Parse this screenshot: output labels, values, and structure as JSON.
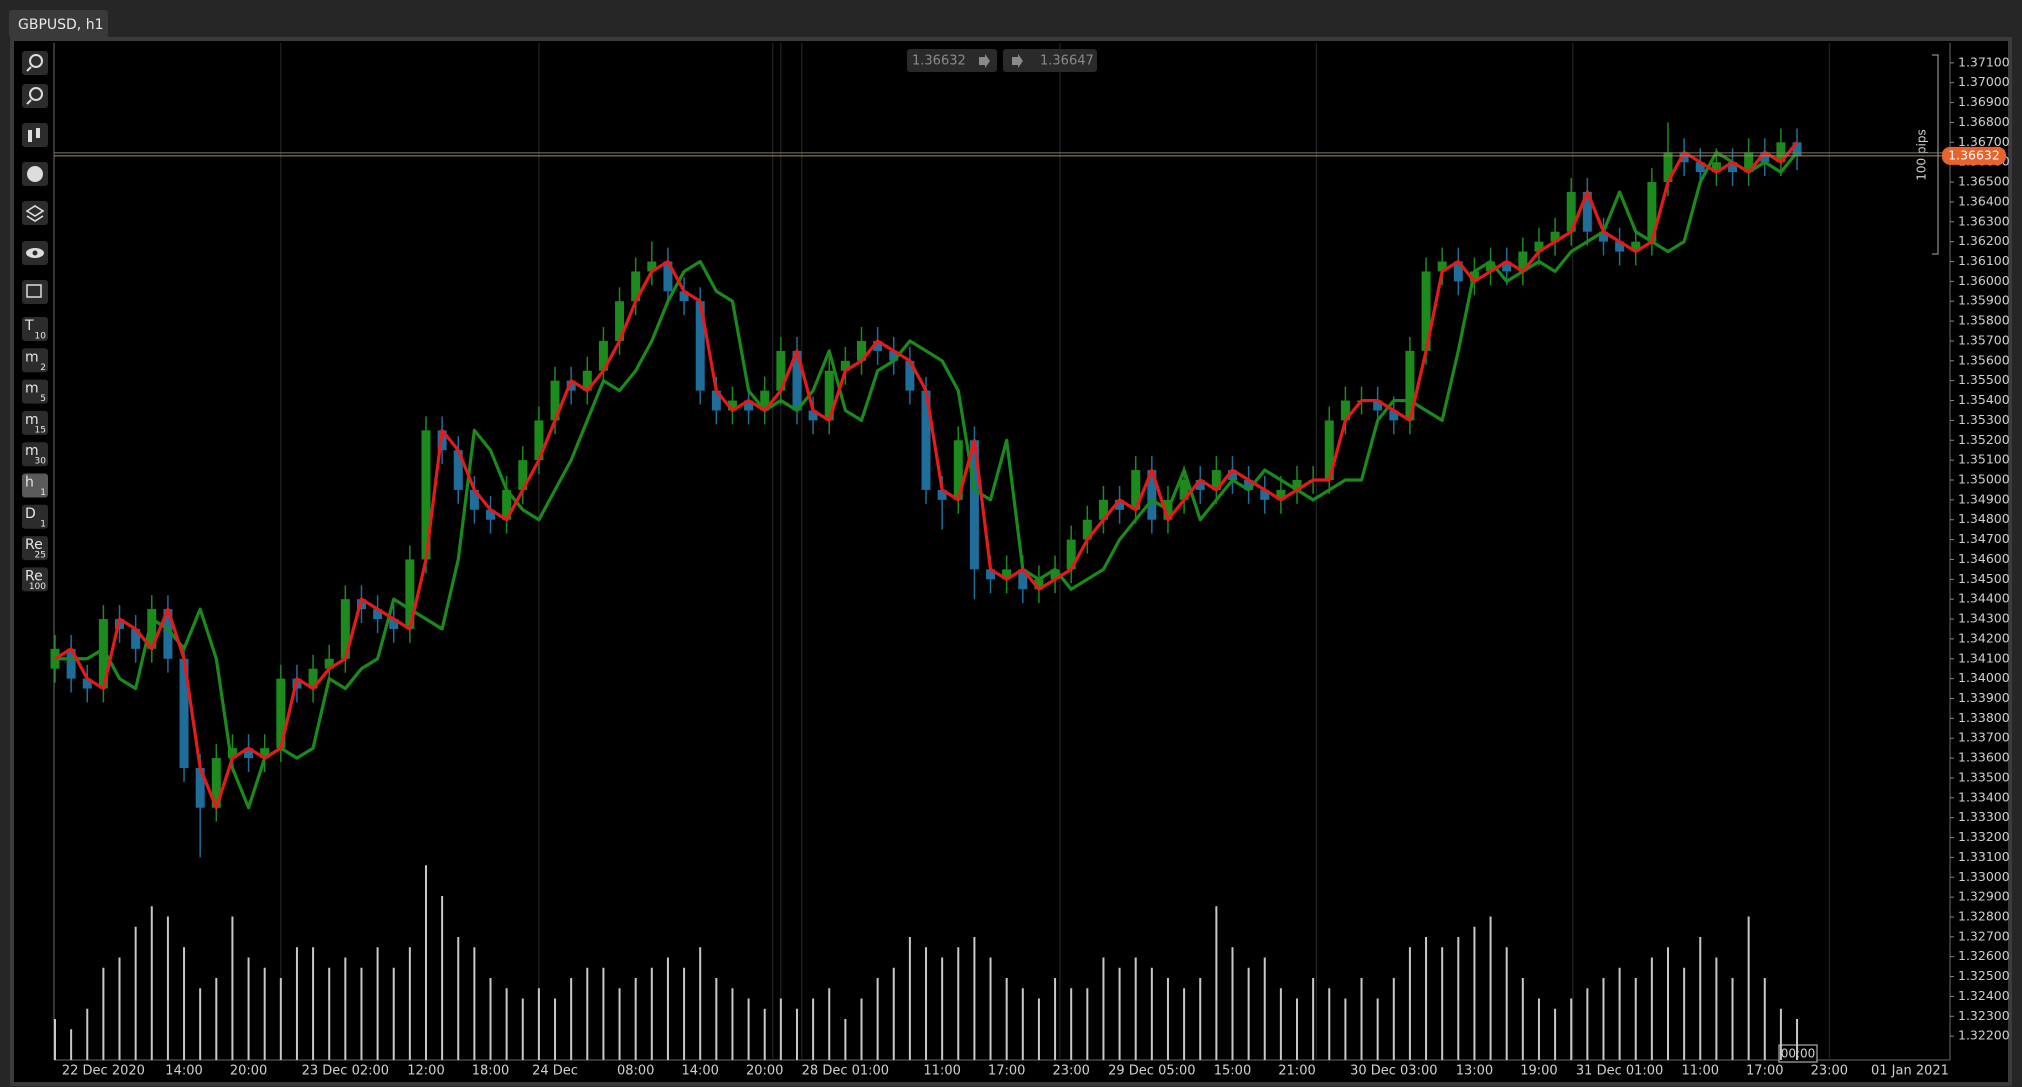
{
  "ui": {
    "tab": "GBPUSD, h1",
    "pips": "100 pips",
    "time_marker": "00:00",
    "toolbar": [
      {
        "label": "T",
        "sub": "10"
      },
      {
        "label": "m",
        "sub": "2"
      },
      {
        "label": "m",
        "sub": "5"
      },
      {
        "label": "m",
        "sub": "15"
      },
      {
        "label": "m",
        "sub": "30"
      },
      {
        "label": "h",
        "sub": "1"
      },
      {
        "label": "D",
        "sub": "1"
      },
      {
        "label": "Re",
        "sub": "25"
      },
      {
        "label": "Re",
        "sub": "100"
      }
    ],
    "active_button": 5
  },
  "chart_data": {
    "type": "candlestick",
    "up_color": "#1d8a1d",
    "down_color": "#1f6e9a",
    "volume_color": "#c8c8c8",
    "bid": 1.36632,
    "ask": 1.36647,
    "bid_color": "#e8642c",
    "categories": [
      null,
      null,
      null,
      "22 Dec 2020",
      null,
      null,
      null,
      null,
      "14:00",
      null,
      null,
      null,
      "20:00",
      null,
      null,
      null,
      null,
      null,
      "23 Dec 02:00",
      null,
      null,
      null,
      null,
      "12:00",
      null,
      null,
      null,
      "18:00",
      null,
      null,
      null,
      "24 Dec",
      null,
      null,
      null,
      null,
      "08:00",
      null,
      null,
      null,
      "14:00",
      null,
      null,
      null,
      "20:00",
      null,
      null,
      null,
      null,
      "28 Dec 01:00",
      null,
      null,
      null,
      null,
      null,
      "11:00",
      null,
      null,
      null,
      "17:00",
      null,
      null,
      null,
      "23:00",
      null,
      null,
      null,
      null,
      "29 Dec 05:00",
      null,
      null,
      null,
      null,
      "15:00",
      null,
      null,
      null,
      "21:00",
      null,
      null,
      null,
      null,
      null,
      "30 Dec 03:00",
      null,
      null,
      null,
      null,
      "13:00",
      null,
      null,
      null,
      "19:00",
      null,
      null,
      null,
      null,
      "31 Dec 01:00",
      null,
      null,
      null,
      null,
      "11:00",
      null,
      null,
      null,
      "17:00",
      null,
      null,
      null,
      "23:00",
      null,
      null,
      null,
      null,
      "01 Jan 2021",
      null,
      null
    ],
    "open": [
      1.3405,
      1.3415,
      1.34,
      1.3395,
      1.343,
      1.3425,
      1.3415,
      1.3435,
      1.341,
      1.3355,
      1.3335,
      1.336,
      1.3365,
      1.336,
      1.3365,
      1.34,
      1.3395,
      1.3405,
      1.341,
      1.344,
      1.3435,
      1.343,
      1.3425,
      1.346,
      1.3525,
      1.3515,
      1.3495,
      1.3485,
      1.348,
      1.3495,
      1.351,
      1.353,
      1.355,
      1.3545,
      1.3555,
      1.357,
      1.359,
      1.3605,
      1.361,
      1.3595,
      1.359,
      1.3545,
      1.3535,
      1.354,
      1.3535,
      1.3545,
      1.3565,
      1.3535,
      1.353,
      1.3555,
      1.356,
      1.357,
      1.3565,
      1.356,
      1.3545,
      1.3495,
      1.349,
      1.352,
      1.3455,
      1.345,
      1.3455,
      1.3445,
      1.345,
      1.3455,
      1.347,
      1.348,
      1.349,
      1.3485,
      1.3505,
      1.348,
      1.349,
      1.35,
      1.3495,
      1.3505,
      1.35,
      1.3495,
      1.349,
      1.3495,
      1.35,
      1.35,
      1.353,
      1.354,
      1.354,
      1.3535,
      1.353,
      1.3565,
      1.3605,
      1.361,
      1.36,
      1.3605,
      1.361,
      1.3605,
      1.3615,
      1.362,
      1.3625,
      1.3645,
      1.3625,
      1.362,
      1.3615,
      1.362,
      1.365,
      1.3665,
      1.366,
      1.3655,
      1.366,
      1.3655,
      1.3665,
      1.366,
      1.367,
      null,
      null,
      null,
      null,
      null,
      null,
      null,
      null,
      null
    ],
    "high": [
      1.3422,
      1.3422,
      1.3407,
      1.3437,
      1.3437,
      1.3432,
      1.3442,
      1.3442,
      1.3417,
      1.3362,
      1.3367,
      1.3372,
      1.3372,
      1.3372,
      1.3407,
      1.3407,
      1.3412,
      1.3417,
      1.3447,
      1.3447,
      1.3442,
      1.3437,
      1.3467,
      1.3532,
      1.3532,
      1.3522,
      1.3502,
      1.3492,
      1.3502,
      1.3517,
      1.3537,
      1.3557,
      1.3557,
      1.3562,
      1.3577,
      1.3597,
      1.3612,
      1.362,
      1.3617,
      1.3602,
      1.3597,
      1.3552,
      1.3547,
      1.3547,
      1.3552,
      1.3572,
      1.3572,
      1.3542,
      1.3562,
      1.3567,
      1.3577,
      1.3577,
      1.3572,
      1.3567,
      1.3552,
      1.3502,
      1.3527,
      1.3527,
      1.3462,
      1.3462,
      1.3462,
      1.3457,
      1.3462,
      1.3477,
      1.3487,
      1.3497,
      1.3497,
      1.3512,
      1.3512,
      1.3497,
      1.3507,
      1.3507,
      1.3512,
      1.3512,
      1.3507,
      1.3502,
      1.3502,
      1.3507,
      1.3507,
      1.3537,
      1.3547,
      1.3547,
      1.3547,
      1.3542,
      1.3572,
      1.3612,
      1.3617,
      1.3617,
      1.3612,
      1.3617,
      1.3617,
      1.3622,
      1.3627,
      1.3632,
      1.3652,
      1.3652,
      1.3632,
      1.3627,
      1.3627,
      1.3657,
      1.368,
      1.3672,
      1.3667,
      1.3667,
      1.3667,
      1.3672,
      1.3672,
      1.3677,
      1.3677,
      null,
      null,
      null,
      null,
      null,
      null,
      null,
      null,
      null
    ],
    "low": [
      1.3398,
      1.3393,
      1.3388,
      1.3388,
      1.3418,
      1.3408,
      1.3408,
      1.3403,
      1.3348,
      1.331,
      1.3328,
      1.3353,
      1.3353,
      1.3353,
      1.3358,
      1.3388,
      1.3388,
      1.3398,
      1.3403,
      1.3428,
      1.3423,
      1.3418,
      1.3418,
      1.3453,
      1.3508,
      1.3488,
      1.3478,
      1.3473,
      1.3473,
      1.3488,
      1.3503,
      1.3523,
      1.3538,
      1.3538,
      1.3548,
      1.3563,
      1.3583,
      1.3598,
      1.3588,
      1.3583,
      1.3538,
      1.3528,
      1.3528,
      1.3528,
      1.3528,
      1.3538,
      1.3528,
      1.3523,
      1.3523,
      1.3548,
      1.3553,
      1.3558,
      1.3553,
      1.3538,
      1.3488,
      1.3475,
      1.3483,
      1.344,
      1.3443,
      1.3443,
      1.3438,
      1.3438,
      1.3443,
      1.3448,
      1.3463,
      1.3473,
      1.3478,
      1.3478,
      1.3473,
      1.3473,
      1.3483,
      1.3488,
      1.3488,
      1.3493,
      1.3488,
      1.3483,
      1.3483,
      1.3488,
      1.3493,
      1.3493,
      1.3523,
      1.3533,
      1.3528,
      1.3523,
      1.3523,
      1.3558,
      1.3598,
      1.3593,
      1.3593,
      1.3598,
      1.3598,
      1.3598,
      1.3608,
      1.3613,
      1.3618,
      1.3618,
      1.3613,
      1.3608,
      1.3608,
      1.3613,
      1.3643,
      1.3653,
      1.3648,
      1.3648,
      1.3648,
      1.3648,
      1.3653,
      1.3653,
      1.3656,
      null,
      null,
      null,
      null,
      null,
      null,
      null,
      null,
      null
    ],
    "close": [
      1.3415,
      1.34,
      1.3395,
      1.343,
      1.3425,
      1.3415,
      1.3435,
      1.341,
      1.3355,
      1.3335,
      1.336,
      1.3365,
      1.336,
      1.3365,
      1.34,
      1.3395,
      1.3405,
      1.341,
      1.344,
      1.3435,
      1.343,
      1.3425,
      1.346,
      1.3525,
      1.3515,
      1.3495,
      1.3485,
      1.348,
      1.3495,
      1.351,
      1.353,
      1.355,
      1.3545,
      1.3555,
      1.357,
      1.359,
      1.3605,
      1.361,
      1.3595,
      1.359,
      1.3545,
      1.3535,
      1.354,
      1.3535,
      1.3545,
      1.3565,
      1.3535,
      1.353,
      1.3555,
      1.356,
      1.357,
      1.3565,
      1.356,
      1.3545,
      1.3495,
      1.349,
      1.352,
      1.3455,
      1.345,
      1.3455,
      1.3445,
      1.345,
      1.3455,
      1.347,
      1.348,
      1.349,
      1.3485,
      1.3505,
      1.348,
      1.349,
      1.35,
      1.3495,
      1.3505,
      1.35,
      1.3495,
      1.349,
      1.3495,
      1.35,
      1.35,
      1.353,
      1.354,
      1.354,
      1.3535,
      1.353,
      1.3565,
      1.3605,
      1.361,
      1.36,
      1.3605,
      1.361,
      1.3605,
      1.3615,
      1.362,
      1.3625,
      1.3645,
      1.3625,
      1.362,
      1.3615,
      1.362,
      1.365,
      1.3665,
      1.366,
      1.3655,
      1.366,
      1.3655,
      1.3665,
      1.366,
      1.367,
      1.3663,
      null,
      null,
      null,
      null,
      null,
      null,
      null,
      null,
      null
    ],
    "volume": [
      20,
      15,
      25,
      45,
      50,
      65,
      75,
      70,
      55,
      35,
      40,
      70,
      50,
      45,
      40,
      55,
      55,
      45,
      50,
      45,
      55,
      45,
      55,
      95,
      80,
      60,
      55,
      40,
      35,
      30,
      35,
      30,
      40,
      45,
      45,
      35,
      40,
      45,
      50,
      45,
      55,
      40,
      35,
      30,
      25,
      30,
      25,
      30,
      35,
      20,
      30,
      40,
      45,
      60,
      55,
      50,
      55,
      60,
      50,
      40,
      35,
      30,
      40,
      35,
      35,
      50,
      45,
      50,
      45,
      40,
      35,
      40,
      75,
      55,
      45,
      50,
      35,
      30,
      40,
      35,
      30,
      40,
      30,
      40,
      55,
      60,
      55,
      60,
      65,
      70,
      55,
      40,
      30,
      25,
      30,
      35,
      40,
      45,
      40,
      50,
      55,
      45,
      60,
      50,
      40,
      70,
      40,
      25,
      20,
      null,
      null,
      null,
      null,
      null,
      null,
      null,
      null,
      null
    ],
    "lines": [
      {
        "color": "#1a8a1a",
        "values": [
          1.341,
          1.341,
          1.341,
          1.3415,
          1.34,
          1.3395,
          1.343,
          1.3425,
          1.3415,
          1.3435,
          1.341,
          1.3355,
          1.3335,
          1.336,
          1.3365,
          1.336,
          1.3365,
          1.34,
          1.3395,
          1.3405,
          1.341,
          1.344,
          1.3435,
          1.343,
          1.3425,
          1.346,
          1.3525,
          1.3515,
          1.3495,
          1.3485,
          1.348,
          1.3495,
          1.351,
          1.353,
          1.355,
          1.3545,
          1.3555,
          1.357,
          1.359,
          1.3605,
          1.361,
          1.3595,
          1.359,
          1.3545,
          1.3535,
          1.354,
          1.3535,
          1.3545,
          1.3565,
          1.3535,
          1.353,
          1.3555,
          1.356,
          1.357,
          1.3565,
          1.356,
          1.3545,
          1.3495,
          1.349,
          1.352,
          1.3455,
          1.345,
          1.3455,
          1.3445,
          1.345,
          1.3455,
          1.347,
          1.348,
          1.349,
          1.3485,
          1.3505,
          1.348,
          1.349,
          1.35,
          1.3495,
          1.3505,
          1.35,
          1.3495,
          1.349,
          1.3495,
          1.35,
          1.35,
          1.353,
          1.354,
          1.354,
          1.3535,
          1.353,
          1.3565,
          1.3605,
          1.361,
          1.36,
          1.3605,
          1.361,
          1.3605,
          1.3615,
          1.362,
          1.3625,
          1.3645,
          1.3625,
          1.362,
          1.3615,
          1.362,
          1.365,
          1.3665,
          1.366,
          1.3655,
          1.366,
          1.3655,
          1.3665,
          null,
          null,
          null,
          null,
          null,
          null,
          null,
          null,
          null
        ]
      },
      {
        "color": "#e41b1b",
        "values": [
          1.341,
          1.3415,
          1.34,
          1.3395,
          1.343,
          1.3425,
          1.3415,
          1.3435,
          1.341,
          1.3355,
          1.3335,
          1.336,
          1.3365,
          1.336,
          1.3365,
          1.34,
          1.3395,
          1.3405,
          1.341,
          1.344,
          1.3435,
          1.343,
          1.3425,
          1.346,
          1.3525,
          1.3515,
          1.3495,
          1.3485,
          1.348,
          1.3495,
          1.351,
          1.353,
          1.355,
          1.3545,
          1.3555,
          1.357,
          1.359,
          1.3605,
          1.361,
          1.3595,
          1.359,
          1.3545,
          1.3535,
          1.354,
          1.3535,
          1.3545,
          1.3565,
          1.3535,
          1.353,
          1.3555,
          1.356,
          1.357,
          1.3565,
          1.356,
          1.3545,
          1.3495,
          1.349,
          1.352,
          1.3455,
          1.345,
          1.3455,
          1.3445,
          1.345,
          1.3455,
          1.347,
          1.348,
          1.349,
          1.3485,
          1.3505,
          1.348,
          1.349,
          1.35,
          1.3495,
          1.3505,
          1.35,
          1.3495,
          1.349,
          1.3495,
          1.35,
          1.35,
          1.353,
          1.354,
          1.354,
          1.3535,
          1.353,
          1.3565,
          1.3605,
          1.361,
          1.36,
          1.3605,
          1.361,
          1.3605,
          1.3615,
          1.362,
          1.3625,
          1.3645,
          1.3625,
          1.362,
          1.3615,
          1.362,
          1.365,
          1.3665,
          1.366,
          1.3655,
          1.366,
          1.3655,
          1.3665,
          1.366,
          1.367,
          null,
          null,
          null,
          null,
          null,
          null,
          null,
          null,
          null
        ]
      }
    ],
    "ylim": [
      1.3208,
      1.372
    ],
    "yticks": [
      {
        "value": 1.371,
        "label": "1.37100"
      },
      {
        "value": 1.37,
        "label": "1.37000"
      },
      {
        "value": 1.369,
        "label": "1.36900"
      },
      {
        "value": 1.368,
        "label": "1.36800"
      },
      {
        "value": 1.367,
        "label": "1.36700"
      },
      {
        "value": 1.366,
        "label": "1.36600"
      },
      {
        "value": 1.365,
        "label": "1.36500"
      },
      {
        "value": 1.364,
        "label": "1.36400"
      },
      {
        "value": 1.363,
        "label": "1.36300"
      },
      {
        "value": 1.362,
        "label": "1.36200"
      },
      {
        "value": 1.361,
        "label": "1.36100"
      },
      {
        "value": 1.36,
        "label": "1.36000"
      },
      {
        "value": 1.359,
        "label": "1.35900"
      },
      {
        "value": 1.358,
        "label": "1.35800"
      },
      {
        "value": 1.357,
        "label": "1.35700"
      },
      {
        "value": 1.356,
        "label": "1.35600"
      },
      {
        "value": 1.355,
        "label": "1.35500"
      },
      {
        "value": 1.354,
        "label": "1.35400"
      },
      {
        "value": 1.353,
        "label": "1.35300"
      },
      {
        "value": 1.352,
        "label": "1.35200"
      },
      {
        "value": 1.351,
        "label": "1.35100"
      },
      {
        "value": 1.35,
        "label": "1.35000"
      },
      {
        "value": 1.349,
        "label": "1.34900"
      },
      {
        "value": 1.348,
        "label": "1.34800"
      },
      {
        "value": 1.347,
        "label": "1.34700"
      },
      {
        "value": 1.346,
        "label": "1.34600"
      },
      {
        "value": 1.345,
        "label": "1.34500"
      },
      {
        "value": 1.344,
        "label": "1.34400"
      },
      {
        "value": 1.343,
        "label": "1.34300"
      },
      {
        "value": 1.342,
        "label": "1.34200"
      },
      {
        "value": 1.341,
        "label": "1.34100"
      },
      {
        "value": 1.34,
        "label": "1.34000"
      },
      {
        "value": 1.339,
        "label": "1.33900"
      },
      {
        "value": 1.338,
        "label": "1.33800"
      },
      {
        "value": 1.337,
        "label": "1.33700"
      },
      {
        "value": 1.336,
        "label": "1.33600"
      },
      {
        "value": 1.335,
        "label": "1.33500"
      },
      {
        "value": 1.334,
        "label": "1.33400"
      },
      {
        "value": 1.333,
        "label": "1.33300"
      },
      {
        "value": 1.332,
        "label": "1.33200"
      },
      {
        "value": 1.331,
        "label": "1.33100"
      },
      {
        "value": 1.33,
        "label": "1.33000"
      },
      {
        "value": 1.329,
        "label": "1.32900"
      },
      {
        "value": 1.328,
        "label": "1.32800"
      },
      {
        "value": 1.327,
        "label": "1.32700"
      },
      {
        "value": 1.326,
        "label": "1.32600"
      },
      {
        "value": 1.325,
        "label": "1.32500"
      },
      {
        "value": 1.324,
        "label": "1.32400"
      },
      {
        "value": 1.323,
        "label": "1.32300"
      },
      {
        "value": 1.322,
        "label": "1.32200"
      }
    ]
  }
}
